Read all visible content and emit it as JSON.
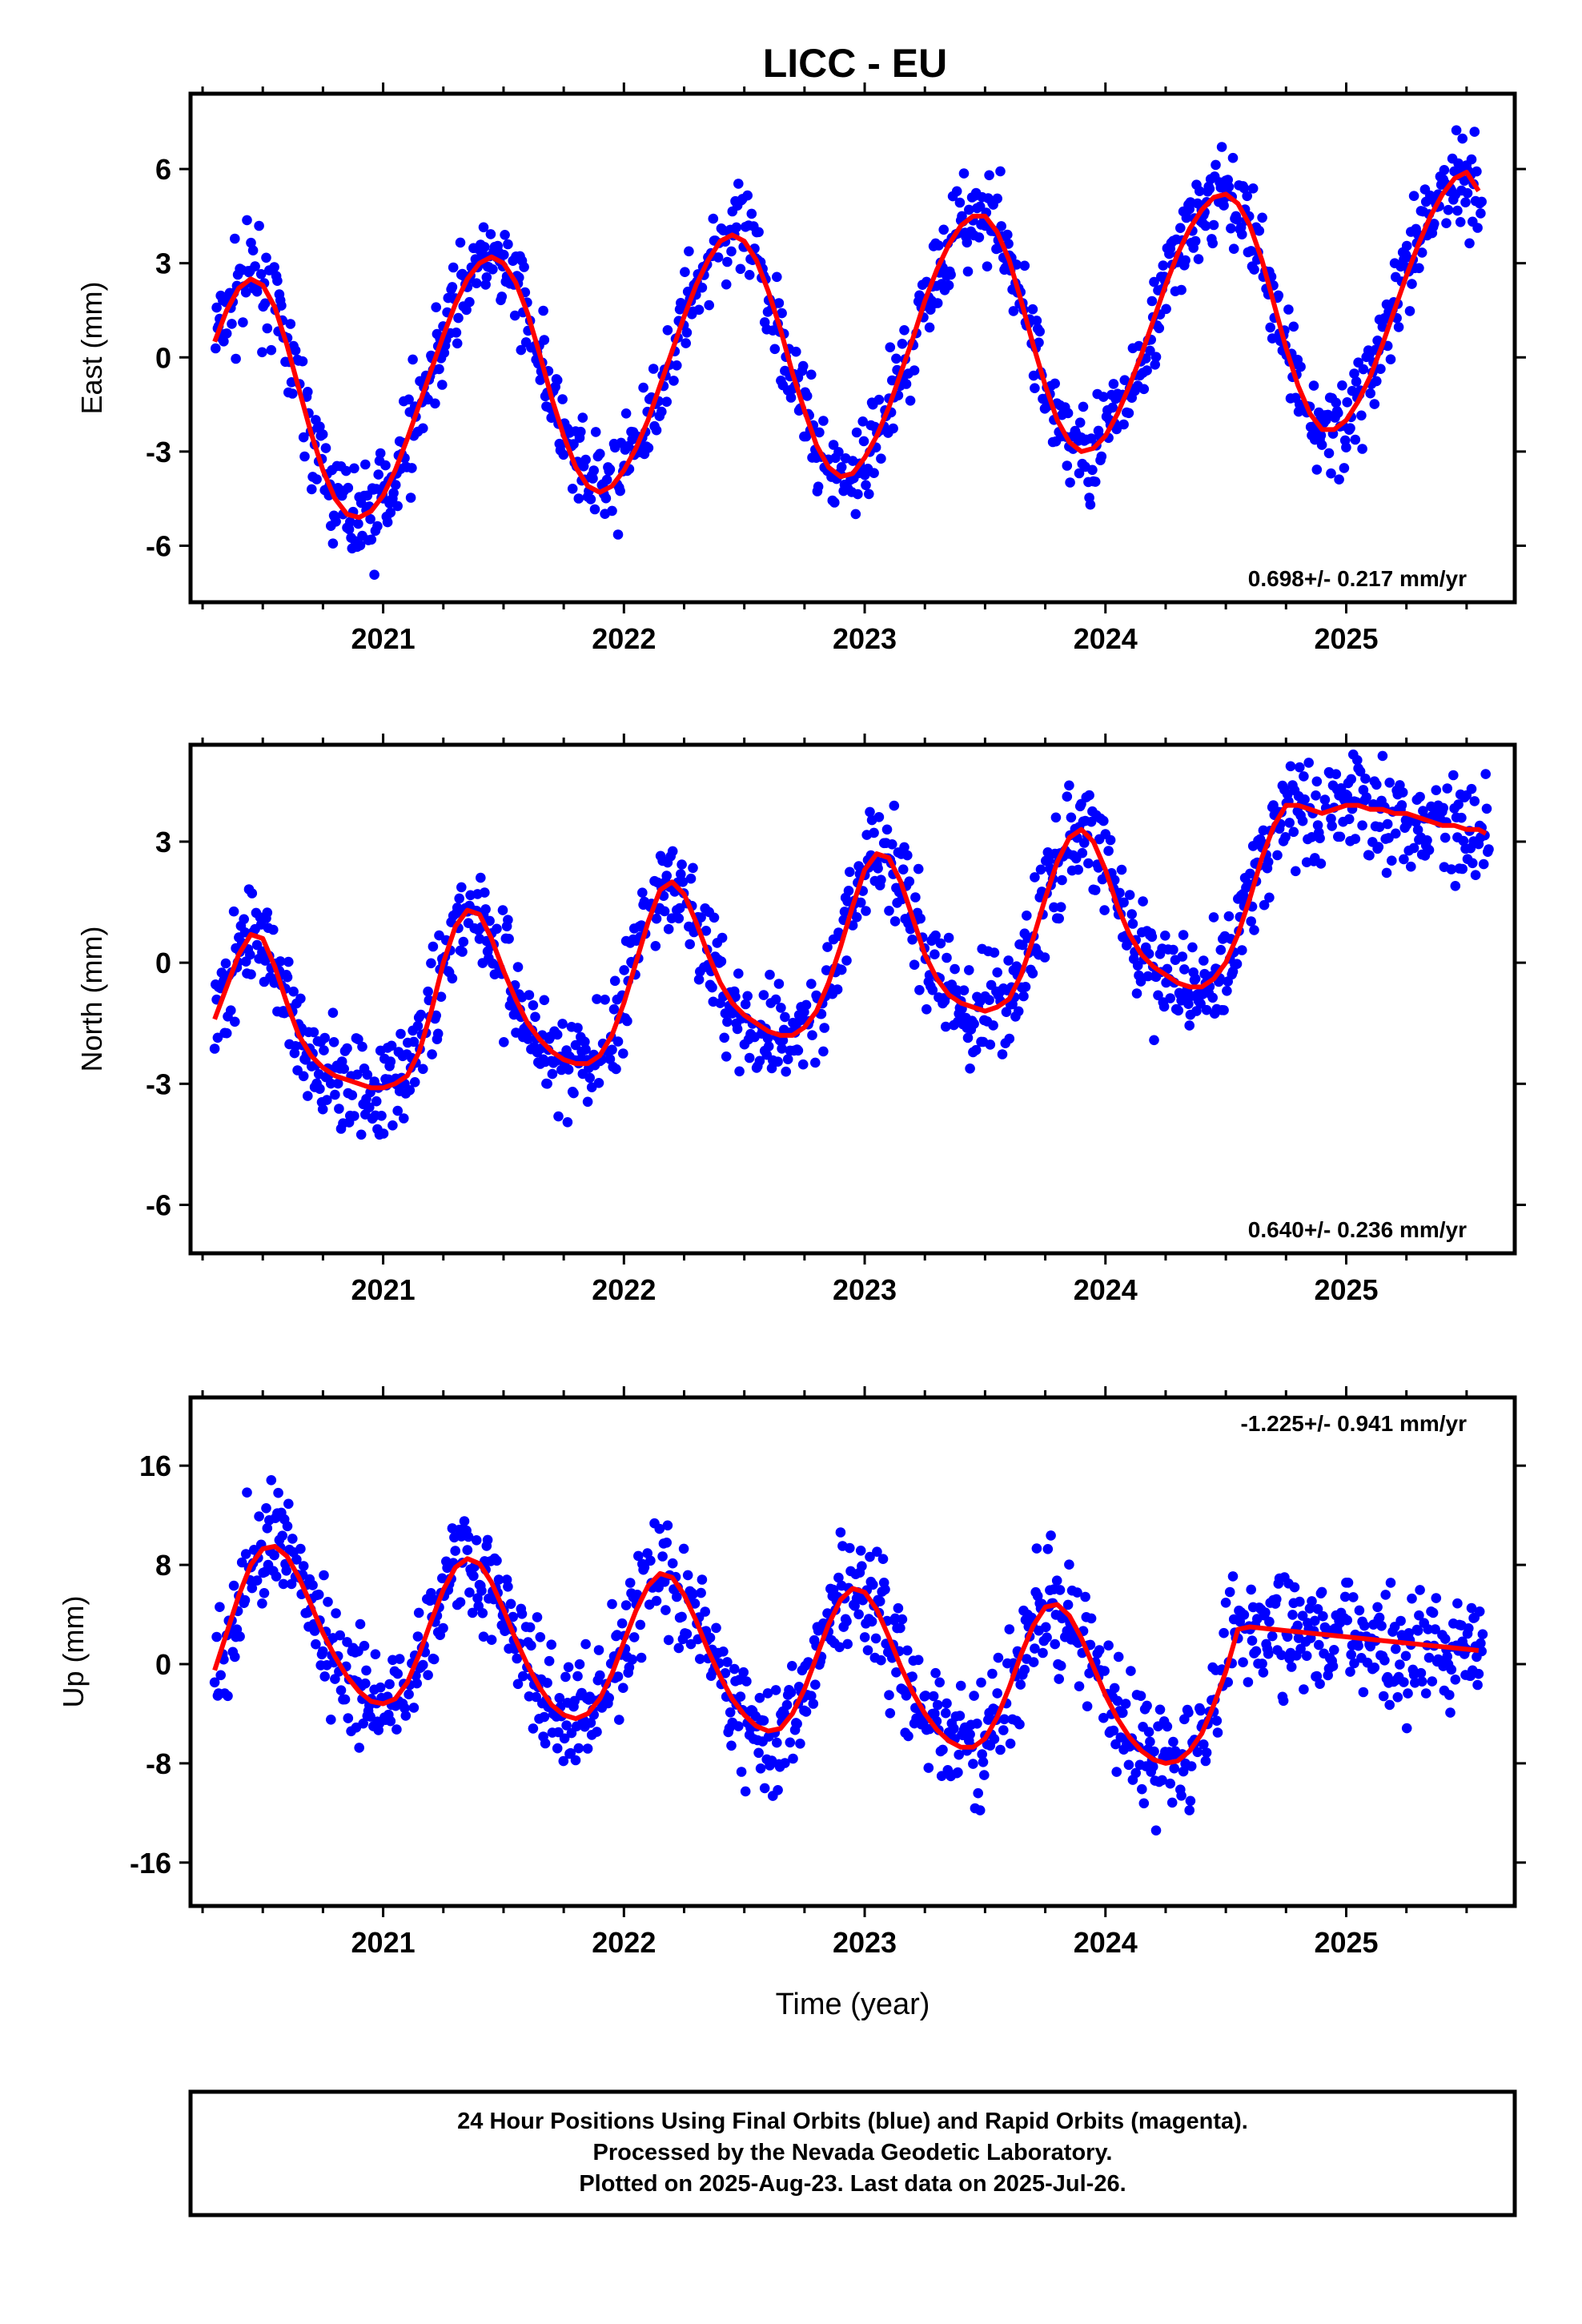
{
  "title": "LICC - EU",
  "footer": {
    "lines": [
      "24 Hour Positions Using Final Orbits (blue) and Rapid Orbits (magenta).",
      "Processed by the Nevada Geodetic Laboratory.",
      "Plotted on 2025-Aug-23. Last data on 2025-Jul-26."
    ]
  },
  "colors": {
    "points": "#0000ff",
    "model": "#ff0000",
    "frame": "#000000"
  },
  "chart_data": [
    {
      "type": "scatter",
      "name": "east",
      "ylabel": "East (mm)",
      "xlabel": "",
      "rate_label": "0.698+/- 0.217 mm/yr",
      "rate_position": "bottom-right",
      "xlim": [
        2020.2,
        2025.7
      ],
      "ylim": [
        -7.8,
        8.4
      ],
      "yticks": [
        -6,
        -3,
        0,
        3,
        6
      ],
      "xticks": [
        2021,
        2022,
        2023,
        2024,
        2025
      ],
      "x_tick_labels": [
        "2021",
        "2022",
        "2023",
        "2024",
        "2025"
      ],
      "y_tick_labels": [
        "-6",
        "-3",
        "0",
        "3",
        "6"
      ],
      "model": {
        "x": [
          2020.3,
          2020.35,
          2020.4,
          2020.45,
          2020.5,
          2020.55,
          2020.6,
          2020.65,
          2020.7,
          2020.75,
          2020.8,
          2020.85,
          2020.9,
          2020.95,
          2021.0,
          2021.05,
          2021.1,
          2021.15,
          2021.2,
          2021.25,
          2021.3,
          2021.35,
          2021.4,
          2021.45,
          2021.5,
          2021.55,
          2021.6,
          2021.65,
          2021.7,
          2021.75,
          2021.8,
          2021.85,
          2021.9,
          2021.95,
          2022.0,
          2022.05,
          2022.1,
          2022.15,
          2022.2,
          2022.25,
          2022.3,
          2022.35,
          2022.4,
          2022.45,
          2022.5,
          2022.55,
          2022.6,
          2022.65,
          2022.7,
          2022.75,
          2022.8,
          2022.85,
          2022.9,
          2022.95,
          2023.0,
          2023.05,
          2023.1,
          2023.15,
          2023.2,
          2023.25,
          2023.3,
          2023.35,
          2023.4,
          2023.45,
          2023.5,
          2023.55,
          2023.6,
          2023.65,
          2023.7,
          2023.75,
          2023.8,
          2023.85,
          2023.9,
          2023.95,
          2024.0,
          2024.05,
          2024.1,
          2024.15,
          2024.2,
          2024.25,
          2024.3,
          2024.35,
          2024.4,
          2024.45,
          2024.5,
          2024.55,
          2024.6,
          2024.65,
          2024.7,
          2024.75,
          2024.8,
          2024.85,
          2024.9,
          2024.95,
          2025.0,
          2025.05,
          2025.1,
          2025.15,
          2025.2,
          2025.25,
          2025.3,
          2025.35,
          2025.4,
          2025.45,
          2025.5,
          2025.55
        ],
        "y": [
          0.5,
          1.5,
          2.2,
          2.5,
          2.3,
          1.6,
          0.4,
          -1.0,
          -2.4,
          -3.6,
          -4.5,
          -5.0,
          -5.1,
          -4.9,
          -4.4,
          -3.6,
          -2.6,
          -1.5,
          -0.4,
          0.7,
          1.7,
          2.5,
          3.0,
          3.2,
          3.0,
          2.4,
          1.4,
          0.1,
          -1.3,
          -2.5,
          -3.5,
          -4.1,
          -4.3,
          -4.1,
          -3.6,
          -2.9,
          -2.0,
          -0.9,
          0.2,
          1.3,
          2.3,
          3.1,
          3.7,
          3.9,
          3.7,
          3.1,
          2.1,
          0.9,
          -0.5,
          -1.7,
          -2.8,
          -3.5,
          -3.8,
          -3.7,
          -3.2,
          -2.5,
          -1.6,
          -0.5,
          0.6,
          1.8,
          2.8,
          3.6,
          4.2,
          4.5,
          4.5,
          4.0,
          3.1,
          1.8,
          0.4,
          -0.9,
          -2.0,
          -2.7,
          -3.0,
          -2.9,
          -2.5,
          -1.8,
          -0.9,
          0.1,
          1.2,
          2.3,
          3.3,
          4.1,
          4.7,
          5.1,
          5.2,
          4.9,
          4.2,
          3.1,
          1.7,
          0.3,
          -0.9,
          -1.8,
          -2.3,
          -2.3,
          -2.0,
          -1.4,
          -0.6,
          0.4,
          1.5,
          2.6,
          3.6,
          4.5,
          5.2,
          5.7,
          5.9,
          5.3
        ]
      }
    },
    {
      "type": "scatter",
      "name": "north",
      "ylabel": "North (mm)",
      "xlabel": "",
      "rate_label": "0.640+/- 0.236 mm/yr",
      "rate_position": "bottom-right",
      "xlim": [
        2020.2,
        2025.7
      ],
      "ylim": [
        -7.2,
        5.4
      ],
      "yticks": [
        -6,
        -3,
        0,
        3
      ],
      "xticks": [
        2021,
        2022,
        2023,
        2024,
        2025
      ],
      "x_tick_labels": [
        "2021",
        "2022",
        "2023",
        "2024",
        "2025"
      ],
      "y_tick_labels": [
        "-6",
        "-3",
        "0",
        "3"
      ],
      "model": {
        "x": [
          2020.3,
          2020.35,
          2020.4,
          2020.45,
          2020.5,
          2020.55,
          2020.6,
          2020.65,
          2020.7,
          2020.75,
          2020.8,
          2020.85,
          2020.9,
          2020.95,
          2021.0,
          2021.05,
          2021.1,
          2021.15,
          2021.2,
          2021.25,
          2021.3,
          2021.35,
          2021.4,
          2021.45,
          2021.5,
          2021.55,
          2021.6,
          2021.65,
          2021.7,
          2021.75,
          2021.8,
          2021.85,
          2021.9,
          2021.95,
          2022.0,
          2022.05,
          2022.1,
          2022.15,
          2022.2,
          2022.25,
          2022.3,
          2022.35,
          2022.4,
          2022.45,
          2022.5,
          2022.55,
          2022.6,
          2022.65,
          2022.7,
          2022.75,
          2022.8,
          2022.85,
          2022.9,
          2022.95,
          2023.0,
          2023.05,
          2023.1,
          2023.15,
          2023.2,
          2023.25,
          2023.3,
          2023.35,
          2023.4,
          2023.45,
          2023.5,
          2023.55,
          2023.6,
          2023.65,
          2023.7,
          2023.75,
          2023.8,
          2023.85,
          2023.9,
          2023.95,
          2024.0,
          2024.05,
          2024.1,
          2024.15,
          2024.2,
          2024.25,
          2024.3,
          2024.35,
          2024.4,
          2024.45,
          2024.5,
          2024.55,
          2024.6,
          2024.65,
          2024.7,
          2024.75,
          2024.8,
          2024.85,
          2024.9,
          2024.95,
          2025.0,
          2025.05,
          2025.1,
          2025.15,
          2025.2,
          2025.25,
          2025.3,
          2025.35,
          2025.4,
          2025.45,
          2025.5,
          2025.55,
          2025.58
        ],
        "y": [
          -1.4,
          -0.6,
          0.2,
          0.7,
          0.6,
          -0.1,
          -1.0,
          -1.8,
          -2.3,
          -2.6,
          -2.8,
          -2.9,
          -3.0,
          -3.1,
          -3.1,
          -3.0,
          -2.8,
          -2.2,
          -1.2,
          0.0,
          0.9,
          1.3,
          1.2,
          0.6,
          -0.2,
          -0.9,
          -1.5,
          -1.9,
          -2.2,
          -2.4,
          -2.5,
          -2.5,
          -2.3,
          -1.8,
          -1.0,
          0.0,
          1.0,
          1.8,
          2.0,
          1.7,
          1.0,
          0.2,
          -0.5,
          -1.0,
          -1.3,
          -1.5,
          -1.7,
          -1.8,
          -1.8,
          -1.6,
          -1.2,
          -0.5,
          0.4,
          1.4,
          2.3,
          2.7,
          2.6,
          2.0,
          1.1,
          0.2,
          -0.4,
          -0.8,
          -1.0,
          -1.1,
          -1.2,
          -1.1,
          -0.9,
          -0.3,
          0.6,
          1.6,
          2.5,
          3.1,
          3.3,
          3.0,
          2.3,
          1.4,
          0.7,
          0.2,
          -0.1,
          -0.3,
          -0.5,
          -0.6,
          -0.6,
          -0.4,
          0.0,
          0.7,
          1.6,
          2.6,
          3.4,
          3.9,
          3.9,
          3.8,
          3.7,
          3.8,
          3.9,
          3.9,
          3.8,
          3.8,
          3.7,
          3.7,
          3.6,
          3.5,
          3.4,
          3.4,
          3.3,
          3.3,
          3.2
        ]
      }
    },
    {
      "type": "scatter",
      "name": "up",
      "ylabel": "Up (mm)",
      "xlabel": "Time (year)",
      "rate_label": "-1.225+/- 0.941 mm/yr",
      "rate_position": "top-right",
      "xlim": [
        2020.2,
        2025.7
      ],
      "ylim": [
        -19.5,
        21.5
      ],
      "yticks": [
        -16,
        -8,
        0,
        8,
        16
      ],
      "xticks": [
        2021,
        2022,
        2023,
        2024,
        2025
      ],
      "x_tick_labels": [
        "2021",
        "2022",
        "2023",
        "2024",
        "2025"
      ],
      "y_tick_labels": [
        "-16",
        "-8",
        "0",
        "8",
        "16"
      ],
      "model": {
        "x": [
          2020.3,
          2020.35,
          2020.4,
          2020.45,
          2020.5,
          2020.55,
          2020.6,
          2020.65,
          2020.7,
          2020.75,
          2020.8,
          2020.85,
          2020.9,
          2020.95,
          2021.0,
          2021.05,
          2021.1,
          2021.15,
          2021.2,
          2021.25,
          2021.3,
          2021.35,
          2021.4,
          2021.45,
          2021.5,
          2021.55,
          2021.6,
          2021.65,
          2021.7,
          2021.75,
          2021.8,
          2021.85,
          2021.9,
          2021.95,
          2022.0,
          2022.05,
          2022.1,
          2022.15,
          2022.2,
          2022.25,
          2022.3,
          2022.35,
          2022.4,
          2022.45,
          2022.5,
          2022.55,
          2022.6,
          2022.65,
          2022.7,
          2022.75,
          2022.8,
          2022.85,
          2022.9,
          2022.95,
          2023.0,
          2023.05,
          2023.1,
          2023.15,
          2023.2,
          2023.25,
          2023.3,
          2023.35,
          2023.4,
          2023.45,
          2023.5,
          2023.55,
          2023.6,
          2023.65,
          2023.7,
          2023.75,
          2023.8,
          2023.85,
          2023.9,
          2023.95,
          2024.0,
          2024.05,
          2024.1,
          2024.15,
          2024.2,
          2024.25,
          2024.3,
          2024.35,
          2024.4,
          2024.45,
          2024.5,
          2024.55,
          2024.6,
          2024.65,
          2024.7,
          2024.75,
          2024.8,
          2024.85,
          2024.9,
          2024.95,
          2025.0,
          2025.05,
          2025.1,
          2025.15,
          2025.2,
          2025.25,
          2025.3,
          2025.35,
          2025.4,
          2025.45,
          2025.5,
          2025.55
        ],
        "y": [
          -0.5,
          2.5,
          5.5,
          8.0,
          9.3,
          9.5,
          8.7,
          7.0,
          4.8,
          2.5,
          0.6,
          -1.0,
          -2.2,
          -3.0,
          -3.2,
          -2.8,
          -1.5,
          0.8,
          3.5,
          6.0,
          7.8,
          8.5,
          8.1,
          6.6,
          4.4,
          2.0,
          -0.1,
          -1.9,
          -3.3,
          -4.1,
          -4.4,
          -4.0,
          -2.8,
          -0.8,
          1.8,
          4.3,
          6.3,
          7.3,
          7.0,
          5.6,
          3.5,
          1.1,
          -1.0,
          -2.8,
          -4.1,
          -5.0,
          -5.4,
          -5.2,
          -4.0,
          -2.0,
          0.6,
          3.2,
          5.2,
          6.1,
          5.8,
          4.4,
          2.2,
          -0.2,
          -2.3,
          -4.0,
          -5.3,
          -6.2,
          -6.7,
          -6.7,
          -6.0,
          -4.3,
          -1.9,
          0.8,
          3.1,
          4.6,
          4.8,
          3.9,
          2.1,
          -0.2,
          -2.5,
          -4.4,
          -5.9,
          -7.0,
          -7.7,
          -8.0,
          -7.8,
          -7.0,
          -5.6,
          -3.3,
          -0.6,
          2.8,
          3.0,
          2.9,
          2.8,
          2.7,
          2.6,
          2.5,
          2.4,
          2.3,
          2.2,
          2.1,
          2.0,
          1.9,
          1.8,
          1.7,
          1.6,
          1.5,
          1.4,
          1.3,
          1.2,
          1.1
        ]
      }
    }
  ]
}
